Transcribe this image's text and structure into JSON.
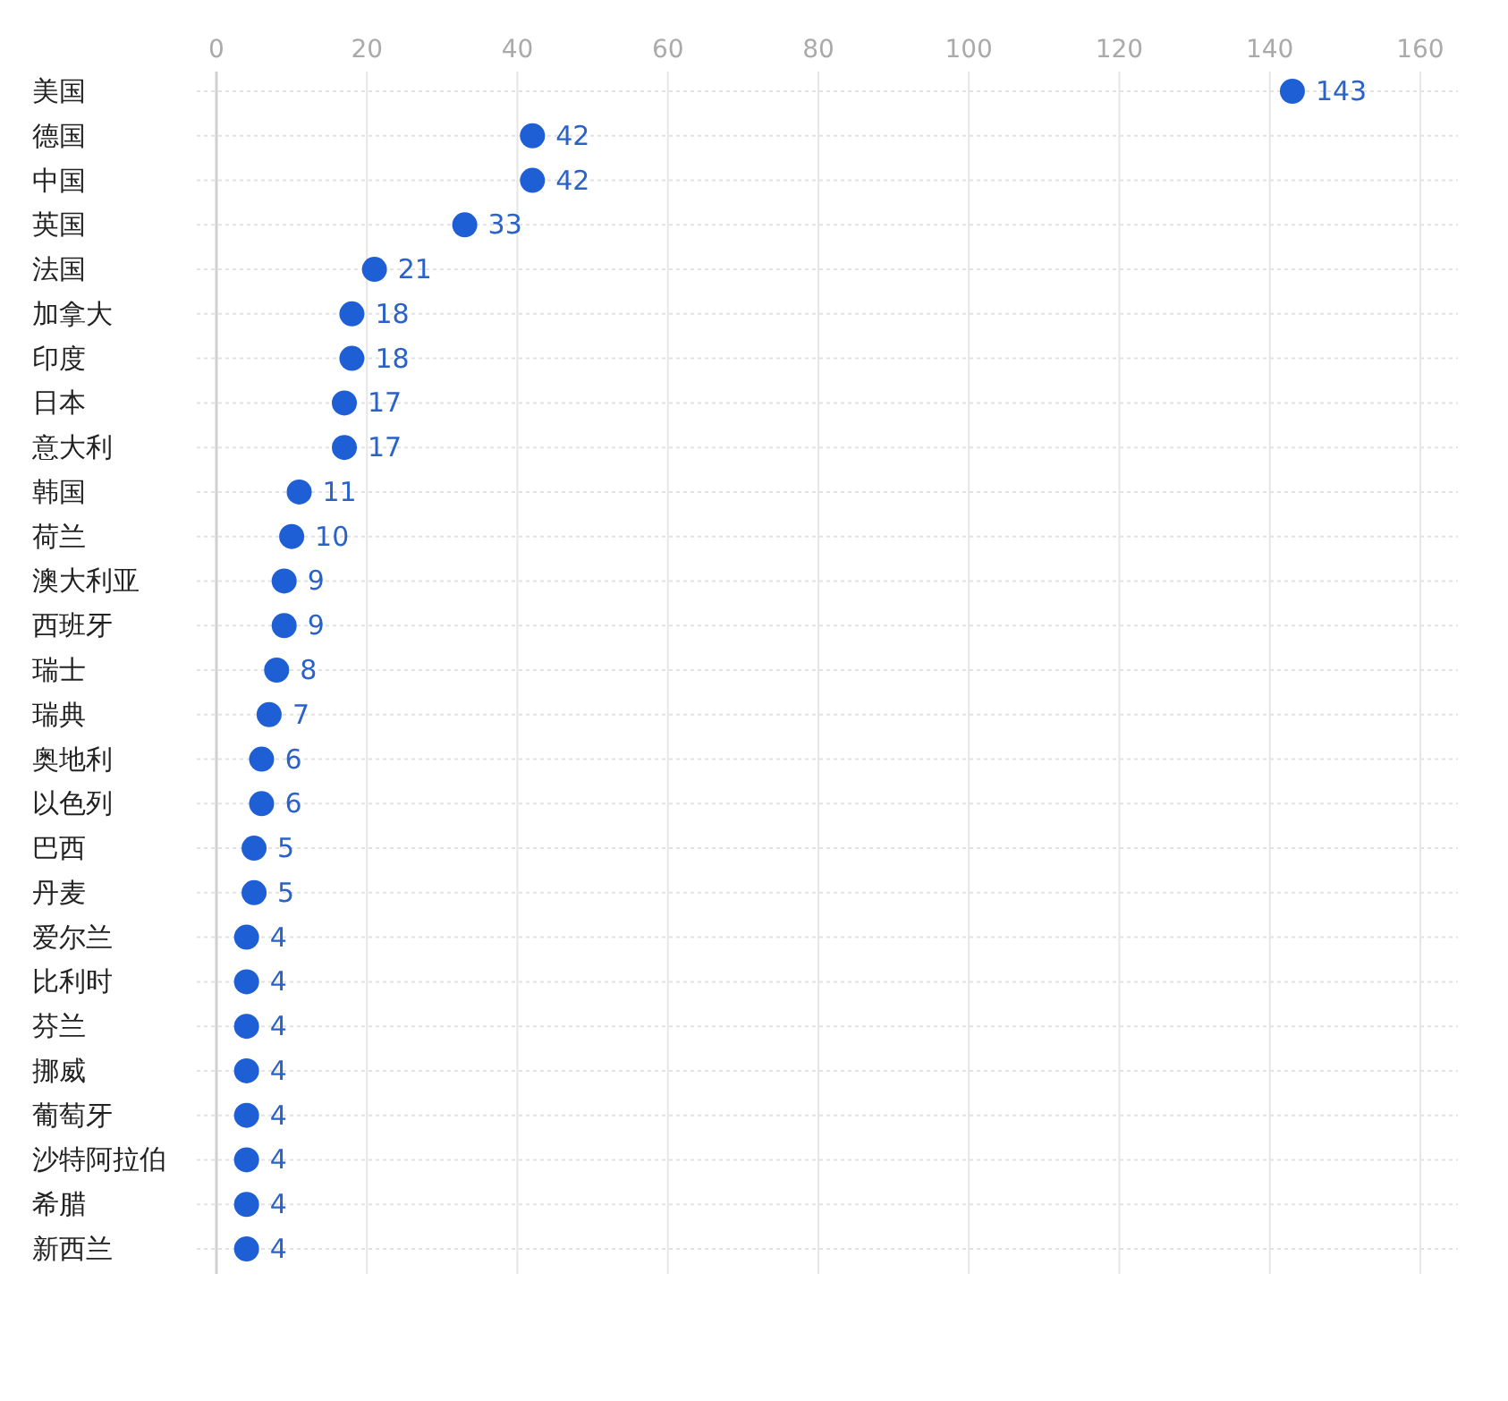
{
  "chart_data": {
    "type": "scatter",
    "orientation": "horizontal",
    "categories": [
      "美国",
      "德国",
      "中国",
      "英国",
      "法国",
      "加拿大",
      "印度",
      "日本",
      "意大利",
      "韩国",
      "荷兰",
      "澳大利亚",
      "西班牙",
      "瑞士",
      "瑞典",
      "奥地利",
      "以色列",
      "巴西",
      "丹麦",
      "爱尔兰",
      "比利时",
      "芬兰",
      "挪威",
      "葡萄牙",
      "沙特阿拉伯",
      "希腊",
      "新西兰"
    ],
    "values": [
      143,
      42,
      42,
      33,
      21,
      18,
      18,
      17,
      17,
      11,
      10,
      9,
      9,
      8,
      7,
      6,
      6,
      5,
      5,
      4,
      4,
      4,
      4,
      4,
      4,
      4,
      4
    ],
    "color": "#1f5fd6",
    "marker": "circle",
    "data_labels": true,
    "xlim": [
      0,
      165
    ],
    "xticks": [
      0,
      20,
      40,
      60,
      80,
      100,
      120,
      140,
      160
    ],
    "grid": true
  }
}
